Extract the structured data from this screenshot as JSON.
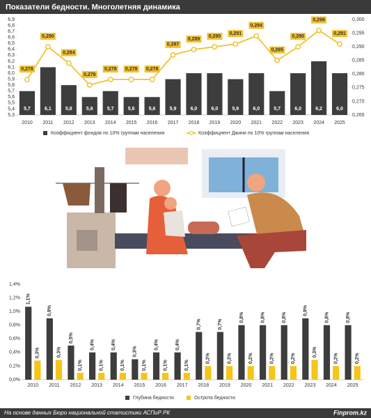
{
  "chart_data": [
    {
      "type": "combo",
      "title": "Показатели бедности. Многолетняя динамика",
      "categories": [
        "2010",
        "2011",
        "2012",
        "2013",
        "2014",
        "2015",
        "2016",
        "2017",
        "2018",
        "2019",
        "2020",
        "2021",
        "2022",
        "2023",
        "2024",
        "2025"
      ],
      "series": [
        {
          "name": "Коэффициент фондов по 10% группам населения",
          "type": "bar",
          "color": "#3d3d3d",
          "values": [
            5.7,
            6.1,
            5.8,
            5.6,
            5.7,
            5.6,
            5.6,
            5.9,
            6.0,
            6.0,
            5.9,
            6.0,
            5.7,
            6.0,
            6.2,
            6.0
          ],
          "value_labels": [
            "5,7",
            "6,1",
            "5,8",
            "5,6",
            "5,7",
            "5,6",
            "5,6",
            "5,9",
            "6,0",
            "6,0",
            "5,9",
            "6,0",
            "5,7",
            "6,0",
            "6,2",
            "6,0"
          ]
        },
        {
          "name": "Коэффициент Джини по 10% группам населения",
          "type": "line",
          "axis": "y2",
          "color": "#f2c12e",
          "values": [
            0.278,
            0.29,
            0.284,
            0.276,
            0.278,
            0.278,
            0.278,
            0.287,
            0.289,
            0.29,
            0.291,
            0.294,
            0.285,
            0.29,
            0.296,
            0.291
          ],
          "value_labels": [
            "0,278",
            "0,290",
            "0,284",
            "0,276",
            "0,278",
            "0,278",
            "0,278",
            "0,287",
            "0,289",
            "0,290",
            "0,291",
            "0,294",
            "0,285",
            "0,290",
            "0,296",
            "0,291"
          ]
        }
      ],
      "ylim": [
        5.3,
        6.9
      ],
      "yticks": [
        {
          "value": 5.3,
          "label": "5,3"
        },
        {
          "value": 5.4,
          "label": "5,4"
        },
        {
          "value": 5.5,
          "label": "5,5"
        },
        {
          "value": 5.6,
          "label": "5,6"
        },
        {
          "value": 5.7,
          "label": "5,7"
        },
        {
          "value": 5.8,
          "label": "5,8"
        },
        {
          "value": 5.9,
          "label": "5,9"
        },
        {
          "value": 6.0,
          "label": "6,0"
        },
        {
          "value": 6.1,
          "label": "6,1"
        },
        {
          "value": 6.2,
          "label": "6,2"
        },
        {
          "value": 6.3,
          "label": "6,3"
        },
        {
          "value": 6.4,
          "label": "6,4"
        },
        {
          "value": 6.5,
          "label": "6,5"
        },
        {
          "value": 6.6,
          "label": "6,6"
        },
        {
          "value": 6.7,
          "label": "6,7"
        },
        {
          "value": 6.8,
          "label": "6,8"
        },
        {
          "value": 6.9,
          "label": "6,9"
        }
      ],
      "y2lim": [
        0.265,
        0.3
      ],
      "y2ticks": [
        {
          "value": 0.265,
          "label": "0,265"
        },
        {
          "value": 0.27,
          "label": "0,270"
        },
        {
          "value": 0.275,
          "label": "0,275"
        },
        {
          "value": 0.28,
          "label": "0,280"
        },
        {
          "value": 0.285,
          "label": "0,285"
        },
        {
          "value": 0.29,
          "label": "0,290"
        },
        {
          "value": 0.295,
          "label": "0,295"
        },
        {
          "value": 0.3,
          "label": "0,300"
        }
      ],
      "grid": false
    },
    {
      "type": "bar",
      "categories": [
        "2010",
        "2011",
        "2012",
        "2013",
        "2014",
        "2015",
        "2016",
        "2017",
        "2018",
        "2019",
        "2020",
        "2021",
        "2022",
        "2023",
        "2024",
        "2025"
      ],
      "series": [
        {
          "name": "Глубина бедности",
          "type": "bar",
          "color": "#3d3d3d",
          "values": [
            1.07,
            0.9,
            0.5,
            0.4,
            0.4,
            0.3,
            0.4,
            0.4,
            0.7,
            0.7,
            0.8,
            0.8,
            0.8,
            0.9,
            0.8,
            0.8
          ],
          "value_labels": [
            "1,1%",
            "0,9%",
            "0,5%",
            "0,4%",
            "0,4%",
            "0,3%",
            "0,4%",
            "0,4%",
            "0,7%",
            "0,7%",
            "0,8%",
            "0,8%",
            "0,8%",
            "0,9%",
            "0,8%",
            "0,8%"
          ]
        },
        {
          "name": "Острота бедности",
          "type": "bar",
          "color": "#f5c518",
          "values": [
            0.28,
            0.29,
            0.1,
            0.1,
            0.1,
            0.1,
            0.1,
            0.1,
            0.2,
            0.2,
            0.2,
            0.2,
            0.2,
            0.29,
            0.2,
            0.2
          ],
          "value_labels": [
            "0,3%",
            "0,3%",
            "0,1%",
            "0,1%",
            "0,1%",
            "0,1%",
            "0,1%",
            "0,1%",
            "0,2%",
            "0,2%",
            "0,2%",
            "0,2%",
            "0,2%",
            "0,3%",
            "0,2%",
            "0,2%"
          ]
        }
      ],
      "ylim": [
        0,
        1.4
      ],
      "yticks": [
        {
          "value": 0,
          "label": "0,0%"
        },
        {
          "value": 0.2,
          "label": "0,2%"
        },
        {
          "value": 0.4,
          "label": "0,4%"
        },
        {
          "value": 0.6,
          "label": "0,6%"
        },
        {
          "value": 0.8,
          "label": "0,8%"
        },
        {
          "value": 1.0,
          "label": "1,0%"
        },
        {
          "value": 1.2,
          "label": "1,2%"
        },
        {
          "value": 1.4,
          "label": "1,4%"
        }
      ],
      "grid": false
    }
  ],
  "footer": {
    "source": "На основе данных Бюро национальной статистики АСПиР РК",
    "brand": "Finprom.kz"
  }
}
